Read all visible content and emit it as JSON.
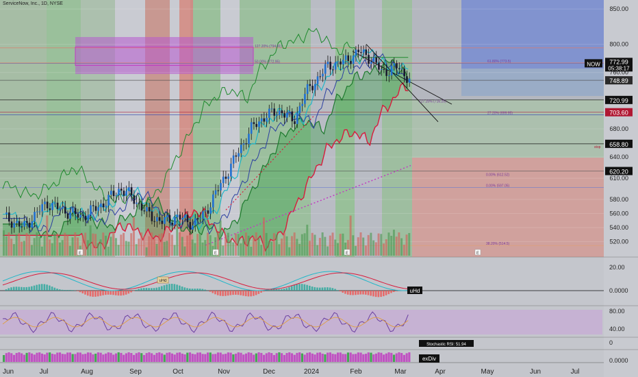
{
  "header": {
    "title": "ServiceNow, Inc., 1D, NYSE"
  },
  "chart_data": {
    "type": "candlestick",
    "symbol_badge": "NOW",
    "current_price": "772.99",
    "countdown": "05:38:17",
    "y_axis_ticks": [
      "850.00",
      "800.00",
      "760.00",
      "720.00",
      "680.00",
      "640.00",
      "610.00",
      "580.00",
      "560.00",
      "540.00",
      "520.00"
    ],
    "y_axis_ticks_values": [
      850,
      800,
      760,
      720,
      680,
      640,
      610,
      580,
      560,
      540,
      520
    ],
    "ylim": [
      505,
      855
    ],
    "price_labels": [
      {
        "id": "p748",
        "text": "748.89",
        "value": 748.89,
        "color": "#2b2b2b"
      },
      {
        "id": "p721",
        "text": "720.99",
        "value": 720.99,
        "color": "#101010"
      },
      {
        "id": "p704",
        "text": "703.60",
        "value": 703.6,
        "color": "#b01833"
      },
      {
        "id": "p659",
        "text": "658.80",
        "value": 658.8,
        "color": "#101010"
      },
      {
        "id": "p620",
        "text": "620.20",
        "value": 620.2,
        "color": "#101010"
      }
    ],
    "fib_labels": [
      {
        "text": "127.20% (794.91)",
        "value": 794.91
      },
      {
        "text": "50.00% (772.95)",
        "value": 772.95
      },
      {
        "text": "61.80% (773.5)",
        "value": 773.5
      },
      {
        "text": "127.20% (716.25)",
        "value": 716.25
      },
      {
        "text": "27.20% (699.95)",
        "value": 699.95
      },
      {
        "text": "0.00% (612.52)",
        "value": 612.52
      },
      {
        "text": "0.00% (597.05)",
        "value": 597.05
      },
      {
        "text": "38.20% (514.5)",
        "value": 514.5
      }
    ],
    "stop_label": "stop",
    "x_axis_labels": [
      "Jun",
      "Jul",
      "Aug",
      "Sep",
      "Oct",
      "Nov",
      "Dec",
      "2024",
      "Feb",
      "Mar",
      "Apr",
      "May",
      "Jun",
      "Jul"
    ],
    "macd_ticks": [
      "20.00",
      "0.0000"
    ],
    "macd_badge": "uHd",
    "macd_hist_badge": "uHd",
    "rsi_ticks": [
      "80.00",
      "40.00"
    ],
    "stoch_tick": "0",
    "stoch_label": "Stochastic RSI: 51.94",
    "bottom_tick": "0.0000",
    "bottom_badge": "exDiv",
    "earnings_marker": "E",
    "colors": {
      "bull": "#1f6fd1",
      "bear": "#1a1a2e",
      "cloud": "#2e9e3e",
      "kijun": "#d81b3c",
      "tenkan": "#1fb6c9"
    }
  }
}
